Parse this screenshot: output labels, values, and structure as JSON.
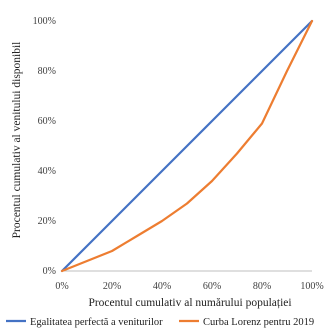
{
  "chart_data": {
    "type": "line",
    "x": [
      0,
      10,
      20,
      30,
      40,
      50,
      60,
      70,
      80,
      90,
      100
    ],
    "xlim": [
      0,
      100
    ],
    "ylim": [
      0,
      100
    ],
    "x_ticks": [
      "0%",
      "20%",
      "40%",
      "60%",
      "80%",
      "100%"
    ],
    "y_ticks": [
      "0%",
      "20%",
      "40%",
      "60%",
      "80%",
      "100%"
    ],
    "xlabel": "Procentul cumulativ al numărului populației",
    "ylabel": "Procentul cumulativ al venitului disponibil",
    "grid": false,
    "legend_position": "bottom",
    "series": [
      {
        "name": "Egalitatea perfectă a veniturilor",
        "color": "#4472c4",
        "values": [
          0,
          10,
          20,
          30,
          40,
          50,
          60,
          70,
          80,
          90,
          100
        ]
      },
      {
        "name": "Curba Lorenz pentru 2019",
        "color": "#ed7d31",
        "values": [
          0,
          4,
          8,
          14,
          20,
          27,
          36,
          47,
          59,
          80,
          100
        ]
      }
    ]
  }
}
